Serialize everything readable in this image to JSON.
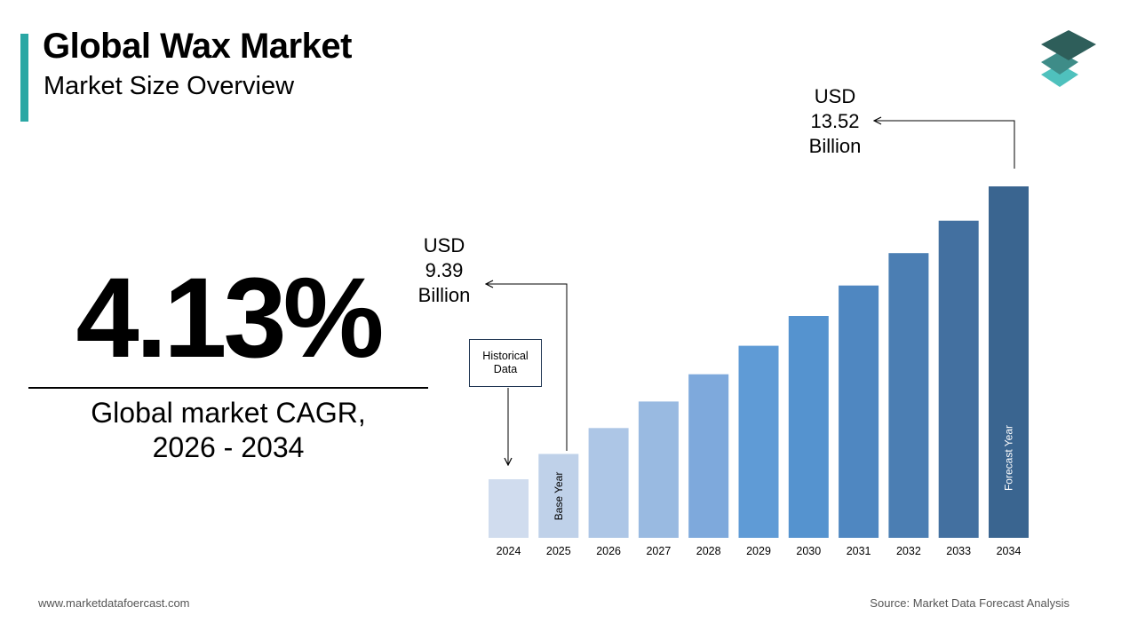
{
  "header": {
    "title": "Global Wax Market",
    "subtitle": "Market Size Overview"
  },
  "cagr": {
    "value": "4.13%",
    "label_line1": "Global market CAGR,",
    "label_line2": "2026 - 2034"
  },
  "callouts": {
    "start": {
      "line1": "USD",
      "line2": "9.39",
      "line3": "Billion"
    },
    "end": {
      "line1": "USD",
      "line2": "13.52",
      "line3": "Billion"
    },
    "historical": {
      "line1": "Historical",
      "line2": "Data"
    }
  },
  "footer": {
    "website": "www.marketdatafoercast.com",
    "source": "Source: Market Data Forecast Analysis"
  },
  "colors": {
    "accent": "#2aa7a4",
    "logo_top": "#2e5e5a",
    "logo_mid": "#3e8c88",
    "logo_bottom": "#4fc1bd"
  },
  "chart_data": {
    "type": "bar",
    "categories": [
      "2024",
      "2025",
      "2026",
      "2027",
      "2028",
      "2029",
      "2030",
      "2031",
      "2032",
      "2033",
      "2034"
    ],
    "values": [
      9.0,
      9.39,
      9.79,
      10.2,
      10.62,
      11.06,
      11.52,
      11.99,
      12.49,
      12.99,
      13.52
    ],
    "bar_labels": {
      "2025": "Base Year",
      "2034": "Forecast Year"
    },
    "bar_colors": [
      "#d0dcee",
      "#bfd1e9",
      "#adc6e6",
      "#99bae1",
      "#7ea9dc",
      "#5f9bd6",
      "#5593cf",
      "#4f87c1",
      "#4b7eb3",
      "#4370a0",
      "#3a6590"
    ]
  }
}
